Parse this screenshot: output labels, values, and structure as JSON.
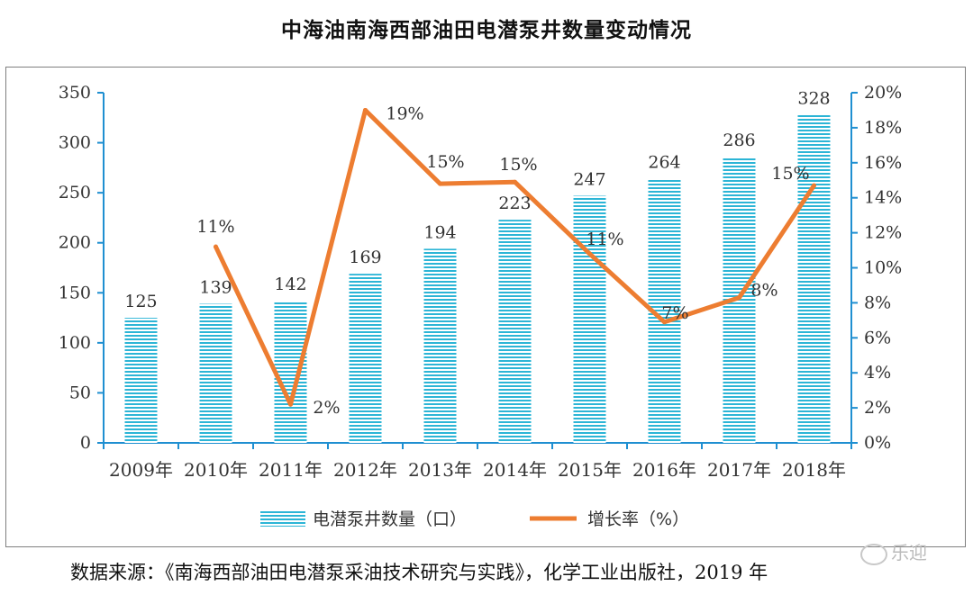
{
  "chart_data": {
    "type": "bar",
    "title": "中海油南海西部油田电潜泵井数量变动情况",
    "categories": [
      "2009年",
      "2010年",
      "2011年",
      "2012年",
      "2013年",
      "2014年",
      "2015年",
      "2016年",
      "2017年",
      "2018年"
    ],
    "series": [
      {
        "name": "电潜泵井数量（口）",
        "type": "bar",
        "axis": "left",
        "color": "#2cb5d6",
        "values": [
          125,
          139,
          142,
          169,
          194,
          223,
          247,
          264,
          286,
          328
        ],
        "labels": [
          "125",
          "139",
          "142",
          "169",
          "194",
          "223",
          "247",
          "264",
          "286",
          "328"
        ]
      },
      {
        "name": "增长率（%）",
        "type": "line",
        "axis": "right",
        "color": "#ed7d31",
        "values": [
          null,
          11.2,
          2.2,
          19.0,
          14.8,
          14.9,
          10.8,
          6.9,
          8.3,
          14.7
        ],
        "labels": [
          "",
          "11%",
          "2%",
          "19%",
          "15%",
          "15%",
          "11%",
          "7%",
          "8%",
          "15%"
        ]
      }
    ],
    "y_left": {
      "ylim": [
        0,
        350
      ],
      "ticks": [
        "0",
        "50",
        "100",
        "150",
        "200",
        "250",
        "300",
        "350"
      ]
    },
    "y_right": {
      "ylim": [
        0,
        20
      ],
      "ticks": [
        "0%",
        "2%",
        "4%",
        "6%",
        "8%",
        "10%",
        "12%",
        "14%",
        "16%",
        "18%",
        "20%"
      ]
    },
    "grid": false,
    "legend": "bottom",
    "axis_color": "#1f8fd1"
  },
  "source": "数据来源：《南海西部油田电潜泵采油技术研究与实践》，化学工业出版社，2019 年",
  "watermark": "乐迎"
}
